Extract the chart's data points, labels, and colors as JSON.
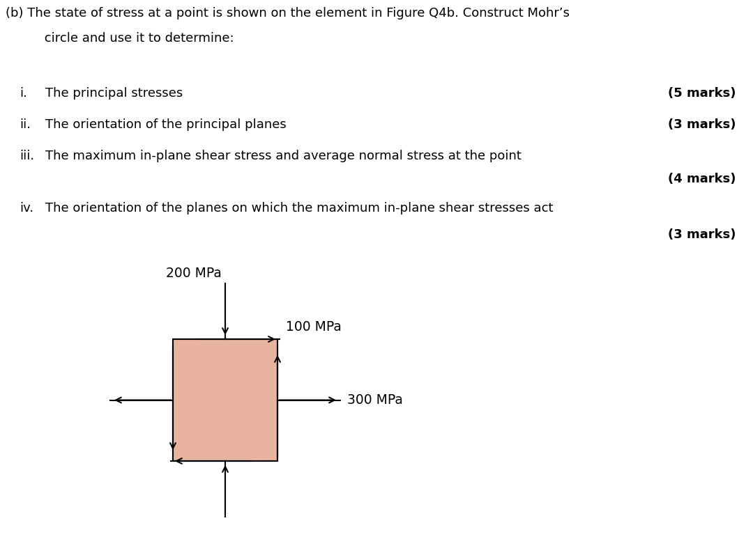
{
  "bg_color": "#ffffff",
  "box_color": "#e8b4a0",
  "box_edge_color": "#000000",
  "text_color": "#000000",
  "title_line1": "(b) The state of stress at a point is shown on the element in Figure Q4b. Construct Mohr’s",
  "title_line2": "     circle and use it to determine:",
  "item_i_roman": "i.",
  "item_i_text": "The principal stresses",
  "item_i_marks": "(5 marks)",
  "item_ii_roman": "ii.",
  "item_ii_text": "The orientation of the principal planes",
  "item_ii_marks": "(3 marks)",
  "item_iii_roman": "iii.",
  "item_iii_text": "The maximum in-plane shear stress and average normal stress at the point",
  "item_iii_marks": "(4 marks)",
  "item_iv_roman": "iv.",
  "item_iv_text": "The orientation of the planes on which the maximum in-plane shear stresses act",
  "item_iv_marks": "(3 marks)",
  "stress_200": "200 MPa",
  "stress_100": "100 MPa",
  "stress_300": "300 MPa",
  "fontsize_title": 13.0,
  "fontsize_body": 13.0,
  "fontsize_stress": 13.5
}
